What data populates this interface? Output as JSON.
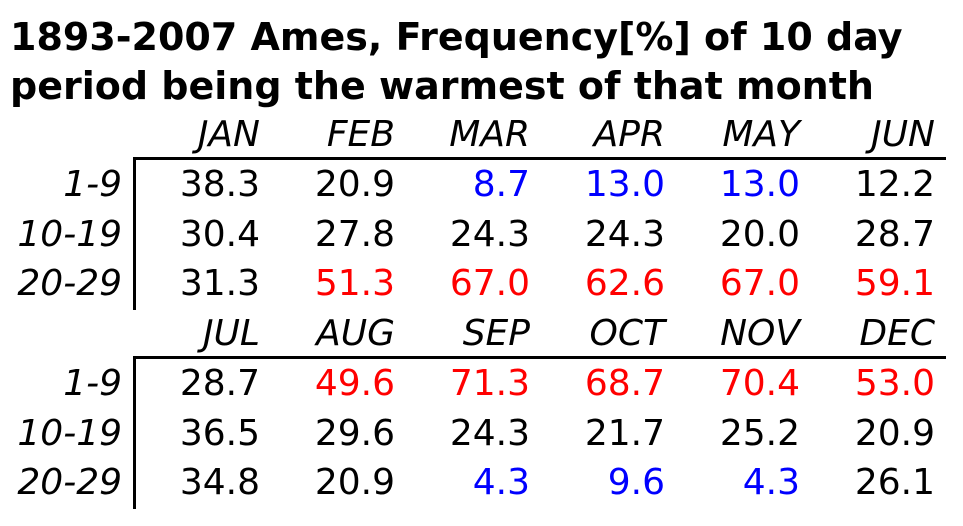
{
  "title_lines": [
    "1893-2007 Ames, Frequency[%] of 10 day",
    "period being the warmest of that month"
  ],
  "colors": {
    "high": "#ff0000",
    "low": "#0000ff",
    "normal": "#000000"
  },
  "row_labels": [
    "1-9",
    "10-19",
    "20-29"
  ],
  "chart_data": {
    "type": "table",
    "title": "1893-2007 Ames, Frequency[%] of 10 day period being the warmest of that month",
    "columns": [
      "JAN",
      "FEB",
      "MAR",
      "APR",
      "MAY",
      "JUN",
      "JUL",
      "AUG",
      "SEP",
      "OCT",
      "NOV",
      "DEC"
    ],
    "rows": [
      "1-9",
      "10-19",
      "20-29"
    ],
    "blocks": [
      {
        "months": [
          "JAN",
          "FEB",
          "MAR",
          "APR",
          "MAY",
          "JUN"
        ],
        "values": [
          [
            "38.3",
            "20.9",
            "8.7",
            "13.0",
            "13.0",
            "12.2"
          ],
          [
            "30.4",
            "27.8",
            "24.3",
            "24.3",
            "20.0",
            "28.7"
          ],
          [
            "31.3",
            "51.3",
            "67.0",
            "62.6",
            "67.0",
            "59.1"
          ]
        ],
        "highlight": [
          [
            "normal",
            "normal",
            "low",
            "low",
            "low",
            "normal"
          ],
          [
            "normal",
            "normal",
            "normal",
            "normal",
            "normal",
            "normal"
          ],
          [
            "normal",
            "high",
            "high",
            "high",
            "high",
            "high"
          ]
        ]
      },
      {
        "months": [
          "JUL",
          "AUG",
          "SEP",
          "OCT",
          "NOV",
          "DEC"
        ],
        "values": [
          [
            "28.7",
            "49.6",
            "71.3",
            "68.7",
            "70.4",
            "53.0"
          ],
          [
            "36.5",
            "29.6",
            "24.3",
            "21.7",
            "25.2",
            "20.9"
          ],
          [
            "34.8",
            "20.9",
            "4.3",
            "9.6",
            "4.3",
            "26.1"
          ]
        ],
        "highlight": [
          [
            "normal",
            "high",
            "high",
            "high",
            "high",
            "high"
          ],
          [
            "normal",
            "normal",
            "normal",
            "normal",
            "normal",
            "normal"
          ],
          [
            "normal",
            "normal",
            "low",
            "low",
            "low",
            "normal"
          ]
        ]
      }
    ]
  }
}
